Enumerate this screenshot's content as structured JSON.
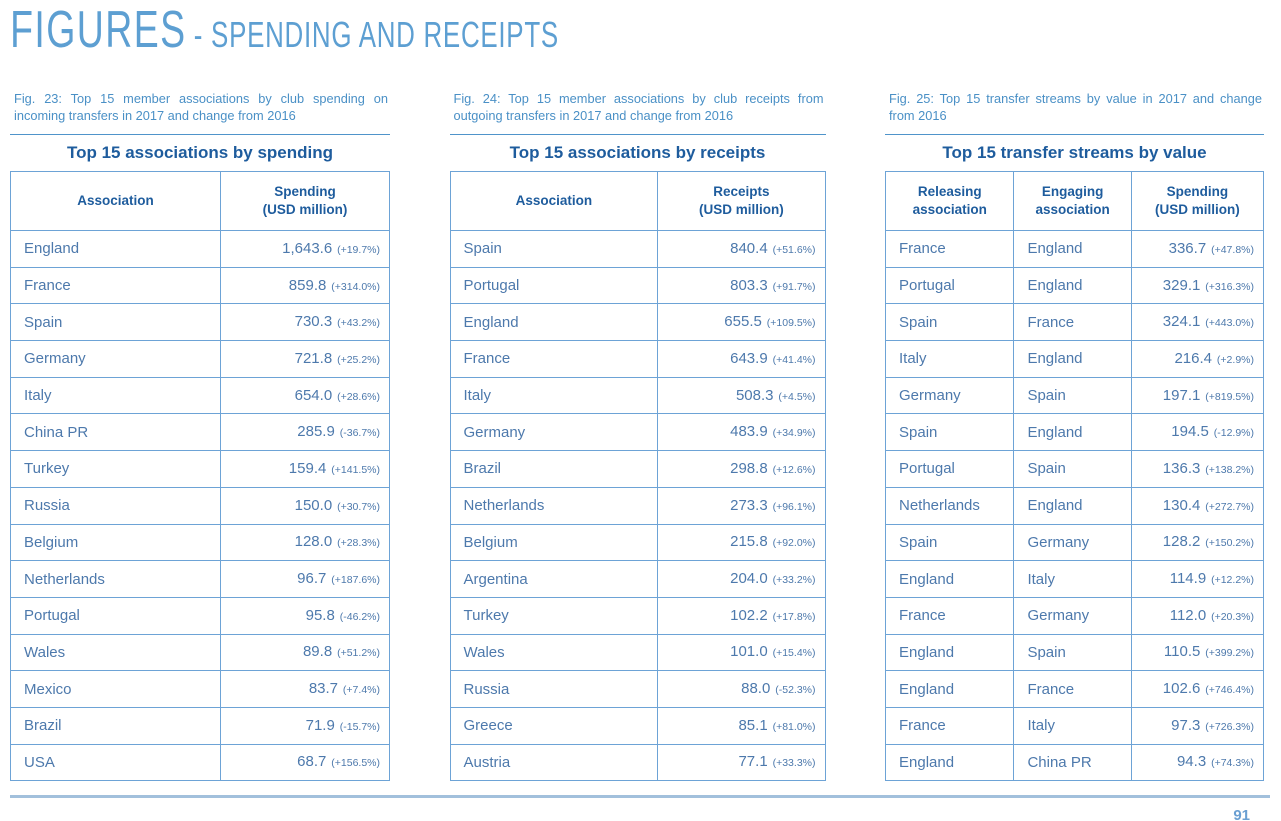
{
  "header": {
    "title_main": "FIGURES",
    "title_sub": "- SPENDING AND RECEIPTS"
  },
  "page_number": "91",
  "colors": {
    "heading_blue": "#5d9fd2",
    "caption_blue": "#4a90c6",
    "title_dark_blue": "#1e5c9d",
    "cell_blue": "#4d79ac",
    "border_blue": "#6da3d6",
    "footer_line_blue": "#a2c0dc"
  },
  "figures": [
    {
      "caption": "Fig. 23: Top 15 member associations by club spending on incoming transfers in 2017 and change from 2016",
      "title": "Top 15 associations by spending",
      "headers": [
        [
          "Association"
        ],
        [
          "Spending",
          "(USD million)"
        ]
      ],
      "rows": [
        {
          "cells": [
            "England"
          ],
          "value": "1,643.6",
          "change": "(+19.7%)"
        },
        {
          "cells": [
            "France"
          ],
          "value": "859.8",
          "change": "(+314.0%)"
        },
        {
          "cells": [
            "Spain"
          ],
          "value": "730.3",
          "change": "(+43.2%)"
        },
        {
          "cells": [
            "Germany"
          ],
          "value": "721.8",
          "change": "(+25.2%)"
        },
        {
          "cells": [
            "Italy"
          ],
          "value": "654.0",
          "change": "(+28.6%)"
        },
        {
          "cells": [
            "China PR"
          ],
          "value": "285.9",
          "change": "(-36.7%)"
        },
        {
          "cells": [
            "Turkey"
          ],
          "value": "159.4",
          "change": "(+141.5%)"
        },
        {
          "cells": [
            "Russia"
          ],
          "value": "150.0",
          "change": "(+30.7%)"
        },
        {
          "cells": [
            "Belgium"
          ],
          "value": "128.0",
          "change": "(+28.3%)"
        },
        {
          "cells": [
            "Netherlands"
          ],
          "value": "96.7",
          "change": "(+187.6%)"
        },
        {
          "cells": [
            "Portugal"
          ],
          "value": "95.8",
          "change": "(-46.2%)"
        },
        {
          "cells": [
            "Wales"
          ],
          "value": "89.8",
          "change": "(+51.2%)"
        },
        {
          "cells": [
            "Mexico"
          ],
          "value": "83.7",
          "change": "(+7.4%)"
        },
        {
          "cells": [
            "Brazil"
          ],
          "value": "71.9",
          "change": "(-15.7%)"
        },
        {
          "cells": [
            "USA"
          ],
          "value": "68.7",
          "change": "(+156.5%)"
        }
      ]
    },
    {
      "caption": "Fig. 24: Top 15 member associations by club receipts from outgoing transfers in 2017 and change from 2016",
      "title": "Top 15 associations by receipts",
      "headers": [
        [
          "Association"
        ],
        [
          "Receipts",
          "(USD million)"
        ]
      ],
      "rows": [
        {
          "cells": [
            "Spain"
          ],
          "value": "840.4",
          "change": "(+51.6%)"
        },
        {
          "cells": [
            "Portugal"
          ],
          "value": "803.3",
          "change": "(+91.7%)"
        },
        {
          "cells": [
            "England"
          ],
          "value": "655.5",
          "change": "(+109.5%)"
        },
        {
          "cells": [
            "France"
          ],
          "value": "643.9",
          "change": "(+41.4%)"
        },
        {
          "cells": [
            "Italy"
          ],
          "value": "508.3",
          "change": "(+4.5%)"
        },
        {
          "cells": [
            "Germany"
          ],
          "value": "483.9",
          "change": "(+34.9%)"
        },
        {
          "cells": [
            "Brazil"
          ],
          "value": "298.8",
          "change": "(+12.6%)"
        },
        {
          "cells": [
            "Netherlands"
          ],
          "value": "273.3",
          "change": "(+96.1%)"
        },
        {
          "cells": [
            "Belgium"
          ],
          "value": "215.8",
          "change": "(+92.0%)"
        },
        {
          "cells": [
            "Argentina"
          ],
          "value": "204.0",
          "change": "(+33.2%)"
        },
        {
          "cells": [
            "Turkey"
          ],
          "value": "102.2",
          "change": "(+17.8%)"
        },
        {
          "cells": [
            "Wales"
          ],
          "value": "101.0",
          "change": "(+15.4%)"
        },
        {
          "cells": [
            "Russia"
          ],
          "value": "88.0",
          "change": "(-52.3%)"
        },
        {
          "cells": [
            "Greece"
          ],
          "value": "85.1",
          "change": "(+81.0%)"
        },
        {
          "cells": [
            "Austria"
          ],
          "value": "77.1",
          "change": "(+33.3%)"
        }
      ]
    },
    {
      "caption": "Fig. 25: Top 15 transfer streams by value in 2017 and change from 2016",
      "title": "Top 15 transfer streams by value",
      "headers": [
        [
          "Releasing",
          "association"
        ],
        [
          "Engaging",
          "association"
        ],
        [
          "Spending",
          "(USD million)"
        ]
      ],
      "rows": [
        {
          "cells": [
            "France",
            "England"
          ],
          "value": "336.7",
          "change": "(+47.8%)"
        },
        {
          "cells": [
            "Portugal",
            "England"
          ],
          "value": "329.1",
          "change": "(+316.3%)"
        },
        {
          "cells": [
            "Spain",
            "France"
          ],
          "value": "324.1",
          "change": "(+443.0%)"
        },
        {
          "cells": [
            "Italy",
            "England"
          ],
          "value": "216.4",
          "change": "(+2.9%)"
        },
        {
          "cells": [
            "Germany",
            "Spain"
          ],
          "value": "197.1",
          "change": "(+819.5%)"
        },
        {
          "cells": [
            "Spain",
            "England"
          ],
          "value": "194.5",
          "change": "(-12.9%)"
        },
        {
          "cells": [
            "Portugal",
            "Spain"
          ],
          "value": "136.3",
          "change": "(+138.2%)"
        },
        {
          "cells": [
            "Netherlands",
            "England"
          ],
          "value": "130.4",
          "change": "(+272.7%)"
        },
        {
          "cells": [
            "Spain",
            "Germany"
          ],
          "value": "128.2",
          "change": "(+150.2%)"
        },
        {
          "cells": [
            "England",
            "Italy"
          ],
          "value": "114.9",
          "change": "(+12.2%)"
        },
        {
          "cells": [
            "France",
            "Germany"
          ],
          "value": "112.0",
          "change": "(+20.3%)"
        },
        {
          "cells": [
            "England",
            "Spain"
          ],
          "value": "110.5",
          "change": "(+399.2%)"
        },
        {
          "cells": [
            "England",
            "France"
          ],
          "value": "102.6",
          "change": "(+746.4%)"
        },
        {
          "cells": [
            "France",
            "Italy"
          ],
          "value": "97.3",
          "change": "(+726.3%)"
        },
        {
          "cells": [
            "England",
            "China PR"
          ],
          "value": "94.3",
          "change": "(+74.3%)"
        }
      ]
    }
  ]
}
